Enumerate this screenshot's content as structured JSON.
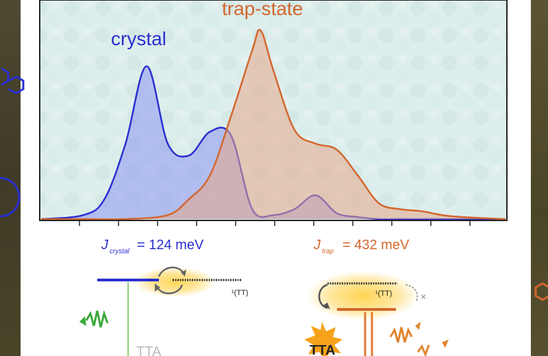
{
  "chart_data": {
    "type": "area",
    "title": "",
    "xlabel": "",
    "ylabel": "",
    "x_ticks_count": 11,
    "series": [
      {
        "name": "crystal",
        "color": "#2a2fd0",
        "fill": "#8c96f0",
        "x": [
          0,
          1,
          1.5,
          2,
          2.5,
          3,
          3.5,
          4,
          4.5,
          5,
          5.5,
          6,
          6.5,
          7,
          7.5,
          8,
          8.5,
          9,
          9.5,
          10,
          11
        ],
        "y": [
          0,
          0.02,
          0.1,
          0.38,
          0.77,
          0.38,
          0.32,
          0.44,
          0.42,
          0.05,
          0.02,
          0.05,
          0.12,
          0.03,
          0.01,
          0,
          0,
          0,
          0,
          0,
          0
        ]
      },
      {
        "name": "trap-state",
        "color": "#d4662d",
        "fill": "#e6a88a",
        "x": [
          0,
          1,
          2,
          3,
          3.5,
          4,
          4.5,
          5,
          5.2,
          5.5,
          6,
          6.5,
          7,
          7.5,
          8,
          8.5,
          9,
          9.5,
          10,
          11
        ],
        "y": [
          0,
          0,
          0,
          0.02,
          0.1,
          0.22,
          0.52,
          0.85,
          0.95,
          0.75,
          0.45,
          0.38,
          0.35,
          0.22,
          0.08,
          0.05,
          0.04,
          0.02,
          0.01,
          0
        ]
      }
    ]
  },
  "annotations": {
    "j_crystal": {
      "J": "J",
      "sub": "crystal",
      "value": "= 124 meV"
    },
    "j_trap": {
      "J": "J",
      "sub": "trap",
      "value": "= 432 meV"
    }
  },
  "diagram": {
    "tt_left": "¹(TT)",
    "tt_right": "¹(TT)",
    "tta_left": "TTA",
    "tta_right": "TTA",
    "x_mark": "×"
  }
}
